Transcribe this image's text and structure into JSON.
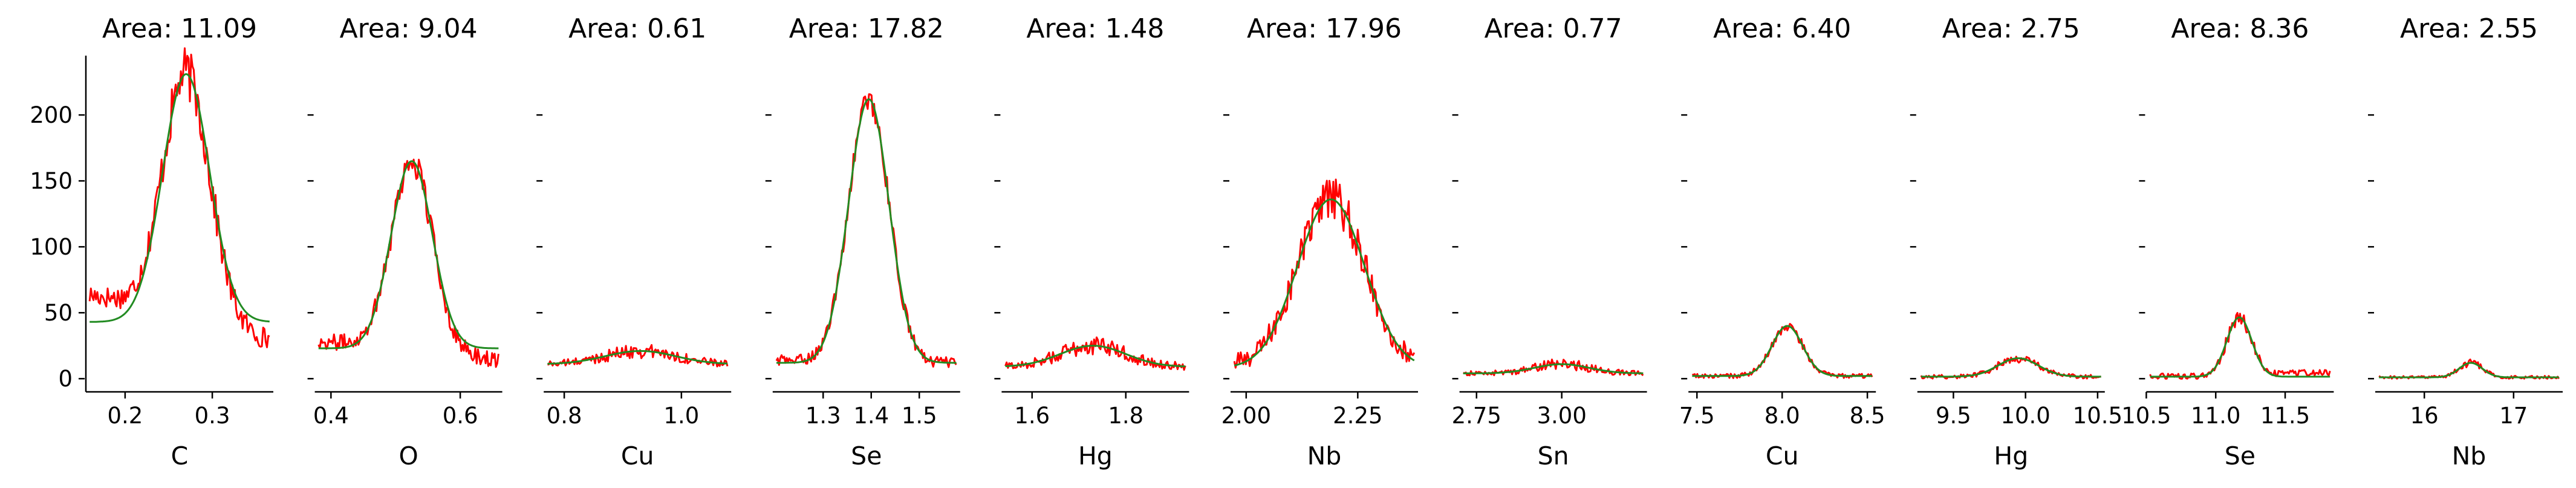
{
  "chart_data": [
    {
      "type": "line",
      "title": "Area: 11.09",
      "xlabel": "C",
      "xlim": [
        0.155,
        0.37
      ],
      "ylim": [
        -10,
        245
      ],
      "xticks": [
        0.2,
        0.3
      ],
      "yticks": [
        0,
        50,
        100,
        150,
        200
      ],
      "peak": {
        "center": 0.27,
        "sigma": 0.027,
        "amplitude": 188,
        "baseline": 43,
        "noise": 14,
        "left_offset": 20,
        "right_offset": -18
      },
      "series": [
        {
          "name": "",
          "color": "#ff0000"
        },
        {
          "name": "",
          "color": "#228b22"
        }
      ]
    },
    {
      "type": "line",
      "title": "Area: 9.04",
      "xlabel": "O",
      "xlim": [
        0.375,
        0.665
      ],
      "ylim": [
        -10,
        245
      ],
      "xticks": [
        0.4,
        0.6
      ],
      "yticks": [
        0,
        50,
        100,
        150,
        200
      ],
      "peak": {
        "center": 0.525,
        "sigma": 0.032,
        "amplitude": 142,
        "baseline": 23,
        "noise": 10,
        "left_offset": 5,
        "right_offset": -10
      },
      "series": [
        {
          "name": "",
          "color": "#ff0000"
        },
        {
          "name": "",
          "color": "#228b22"
        }
      ]
    },
    {
      "type": "line",
      "title": "Area: 0.61",
      "xlabel": "Cu",
      "xlim": [
        0.765,
        1.085
      ],
      "ylim": [
        -10,
        245
      ],
      "xticks": [
        0.8,
        1.0
      ],
      "yticks": [
        0,
        50,
        100,
        150,
        200
      ],
      "peak": {
        "center": 0.93,
        "sigma": 0.06,
        "amplitude": 10,
        "baseline": 11,
        "noise": 4,
        "left_offset": 0,
        "right_offset": 0
      },
      "series": [
        {
          "name": "",
          "color": "#ff0000"
        },
        {
          "name": "",
          "color": "#228b22"
        }
      ]
    },
    {
      "type": "line",
      "title": "Area: 17.82",
      "xlabel": "Se",
      "xlim": [
        1.195,
        1.585
      ],
      "ylim": [
        -10,
        245
      ],
      "xticks": [
        1.3,
        1.4,
        1.5
      ],
      "yticks": [
        0,
        50,
        100,
        150,
        200
      ],
      "peak": {
        "center": 1.395,
        "sigma": 0.042,
        "amplitude": 200,
        "baseline": 12,
        "noise": 7,
        "left_offset": 2,
        "right_offset": 0
      },
      "series": [
        {
          "name": "",
          "color": "#ff0000"
        },
        {
          "name": "",
          "color": "#228b22"
        }
      ]
    },
    {
      "type": "line",
      "title": "Area: 1.48",
      "xlabel": "Hg",
      "xlim": [
        1.535,
        1.935
      ],
      "ylim": [
        -10,
        245
      ],
      "xticks": [
        1.6,
        1.8
      ],
      "yticks": [
        0,
        50,
        100,
        150,
        200
      ],
      "peak": {
        "center": 1.73,
        "sigma": 0.07,
        "amplitude": 16,
        "baseline": 9,
        "noise": 5,
        "left_offset": 0,
        "right_offset": 0
      },
      "series": [
        {
          "name": "",
          "color": "#ff0000"
        },
        {
          "name": "",
          "color": "#228b22"
        }
      ]
    },
    {
      "type": "line",
      "title": "Area: 17.96",
      "xlabel": "Nb",
      "xlim": [
        1.965,
        2.385
      ],
      "ylim": [
        -10,
        245
      ],
      "xticks": [
        2.0,
        2.25
      ],
      "yticks": [
        0,
        50,
        100,
        150,
        200
      ],
      "peak": {
        "center": 2.19,
        "sigma": 0.075,
        "amplitude": 128,
        "baseline": 8,
        "noise": 12,
        "left_offset": 2,
        "right_offset": 2
      },
      "series": [
        {
          "name": "",
          "color": "#ff0000"
        },
        {
          "name": "",
          "color": "#228b22"
        }
      ]
    },
    {
      "type": "line",
      "title": "Area: 0.77",
      "xlabel": "Sn",
      "xlim": [
        2.7,
        3.25
      ],
      "ylim": [
        -10,
        245
      ],
      "xticks": [
        2.75,
        3.0
      ],
      "yticks": [
        0,
        50,
        100,
        150,
        200
      ],
      "peak": {
        "center": 3.0,
        "sigma": 0.08,
        "amplitude": 7,
        "baseline": 4,
        "noise": 3,
        "left_offset": 0,
        "right_offset": 0
      },
      "series": [
        {
          "name": "",
          "color": "#ff0000"
        },
        {
          "name": "",
          "color": "#228b22"
        }
      ]
    },
    {
      "type": "line",
      "title": "Area: 6.40",
      "xlabel": "Cu",
      "xlim": [
        7.45,
        8.55
      ],
      "ylim": [
        -10,
        245
      ],
      "xticks": [
        7.5,
        8.0,
        8.5
      ],
      "yticks": [
        0,
        50,
        100,
        150,
        200
      ],
      "peak": {
        "center": 8.03,
        "sigma": 0.09,
        "amplitude": 38,
        "baseline": 2,
        "noise": 3,
        "left_offset": 0,
        "right_offset": 0
      },
      "series": [
        {
          "name": "",
          "color": "#ff0000"
        },
        {
          "name": "",
          "color": "#228b22"
        }
      ]
    },
    {
      "type": "line",
      "title": "Area: 2.75",
      "xlabel": "Hg",
      "xlim": [
        9.25,
        10.55
      ],
      "ylim": [
        -10,
        245
      ],
      "xticks": [
        9.5,
        10.0,
        10.5
      ],
      "yticks": [
        0,
        50,
        100,
        150,
        200
      ],
      "peak": {
        "center": 9.95,
        "sigma": 0.14,
        "amplitude": 14,
        "baseline": 1.5,
        "noise": 2.5,
        "left_offset": 0,
        "right_offset": 0
      },
      "series": [
        {
          "name": "",
          "color": "#ff0000"
        },
        {
          "name": "",
          "color": "#228b22"
        }
      ]
    },
    {
      "type": "line",
      "title": "Area: 8.36",
      "xlabel": "Se",
      "xlim": [
        10.5,
        11.85
      ],
      "ylim": [
        -10,
        245
      ],
      "xticks": [
        10.5,
        11.0,
        11.5
      ],
      "yticks": [
        0,
        50,
        100,
        150,
        200
      ],
      "peak": {
        "center": 11.17,
        "sigma": 0.09,
        "amplitude": 45,
        "baseline": 1.5,
        "noise": 4,
        "left_offset": 0,
        "right_offset": 3
      },
      "series": [
        {
          "name": "",
          "color": "#ff0000"
        },
        {
          "name": "",
          "color": "#228b22"
        }
      ]
    },
    {
      "type": "line",
      "title": "Area: 2.55",
      "xlabel": "Nb",
      "xlim": [
        15.45,
        17.55
      ],
      "ylim": [
        -10,
        245
      ],
      "xticks": [
        16,
        17
      ],
      "yticks": [
        0,
        50,
        100,
        150,
        200
      ],
      "peak": {
        "center": 16.52,
        "sigma": 0.13,
        "amplitude": 11,
        "baseline": 1,
        "noise": 2,
        "left_offset": 0,
        "right_offset": 0
      },
      "series": [
        {
          "name": "",
          "color": "#ff0000"
        },
        {
          "name": "",
          "color": "#228b22"
        }
      ]
    }
  ]
}
